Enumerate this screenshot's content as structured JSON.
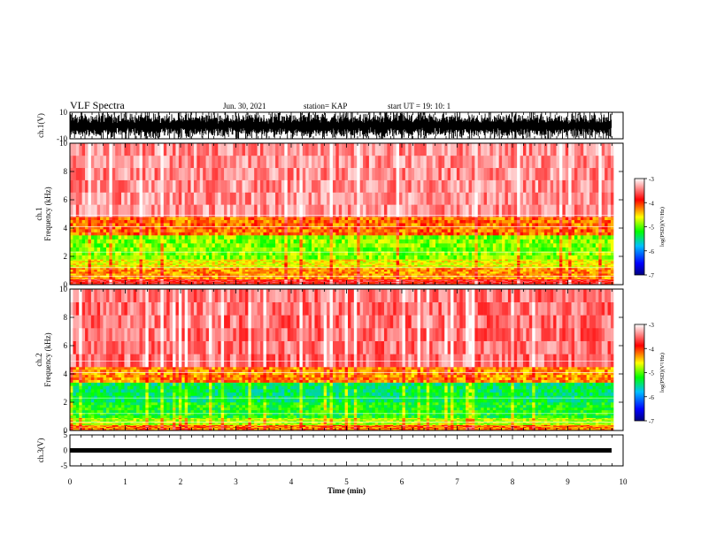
{
  "header": {
    "title": "VLF Spectra",
    "date": "Jun. 30, 2021",
    "station": "station= KAP",
    "start": "start  UT =   19: 10: 1"
  },
  "chart_data": [
    {
      "type": "line",
      "panel": "ch1-waveform",
      "ylabel": "ch.1(V)",
      "ylim": [
        -10,
        10
      ],
      "yticks": [
        "10",
        "-10"
      ],
      "xlim": [
        0,
        10
      ],
      "description_values": {
        "typical_range": [
          -10,
          10
        ]
      },
      "color": "#000000"
    },
    {
      "type": "heatmap",
      "panel": "ch1-spectrogram",
      "ylabel": "ch.1\nFrequency (kHz)",
      "ylim": [
        0,
        10
      ],
      "yticks": [
        "0",
        "2",
        "4",
        "6",
        "8",
        "10"
      ],
      "xlim": [
        0,
        9.83
      ],
      "bands": [
        {
          "f_lo": 0.0,
          "f_hi": 0.4,
          "log_psd": -3.8
        },
        {
          "f_lo": 0.4,
          "f_hi": 1.2,
          "log_psd": -4.3
        },
        {
          "f_lo": 1.2,
          "f_hi": 1.8,
          "log_psd": -4.6
        },
        {
          "f_lo": 1.8,
          "f_hi": 3.5,
          "log_psd": -4.9
        },
        {
          "f_lo": 3.5,
          "f_hi": 4.8,
          "log_psd": -4.2
        },
        {
          "f_lo": 4.8,
          "f_hi": 10.0,
          "log_psd": -3.4
        }
      ],
      "colorbar": {
        "label": "log(PSD)(V²/Hz)",
        "ticks": [
          "-3",
          "-4",
          "-5",
          "-6",
          "-7"
        ],
        "range": [
          -7,
          -3
        ]
      }
    },
    {
      "type": "heatmap",
      "panel": "ch2-spectrogram",
      "ylabel": "ch.2\nFrequency (kHz)",
      "ylim": [
        0,
        10
      ],
      "yticks": [
        "0",
        "2",
        "4",
        "6",
        "8",
        "10"
      ],
      "xlim": [
        0,
        9.83
      ],
      "bands": [
        {
          "f_lo": 0.0,
          "f_hi": 0.4,
          "log_psd": -4.2
        },
        {
          "f_lo": 0.4,
          "f_hi": 0.9,
          "log_psd": -4.8
        },
        {
          "f_lo": 0.9,
          "f_hi": 2.0,
          "log_psd": -5.2
        },
        {
          "f_lo": 2.0,
          "f_hi": 3.4,
          "log_psd": -5.4
        },
        {
          "f_lo": 3.4,
          "f_hi": 4.5,
          "log_psd": -4.3
        },
        {
          "f_lo": 4.5,
          "f_hi": 10.0,
          "log_psd": -3.5
        }
      ],
      "colorbar": {
        "label": "log(PSD)(V²/Hz)",
        "ticks": [
          "-3",
          "-4",
          "-5",
          "-6",
          "-7"
        ],
        "range": [
          -7,
          -3
        ]
      }
    },
    {
      "type": "line",
      "panel": "ch3-waveform",
      "ylabel": "ch.3(V)",
      "ylim": [
        -5,
        5
      ],
      "yticks": [
        "5",
        "0",
        "-5"
      ],
      "xlim": [
        0,
        10
      ],
      "baseline": 0,
      "color": "#000000"
    }
  ],
  "xaxis": {
    "label": "Time (min)",
    "ticks": [
      "0",
      "1",
      "2",
      "3",
      "4",
      "5",
      "6",
      "7",
      "8",
      "9",
      "10"
    ]
  },
  "colors": {
    "colormap": [
      "#00007f",
      "#0000ff",
      "#00c0ff",
      "#00ff00",
      "#ffff00",
      "#ff0000",
      "#ffffff"
    ]
  }
}
